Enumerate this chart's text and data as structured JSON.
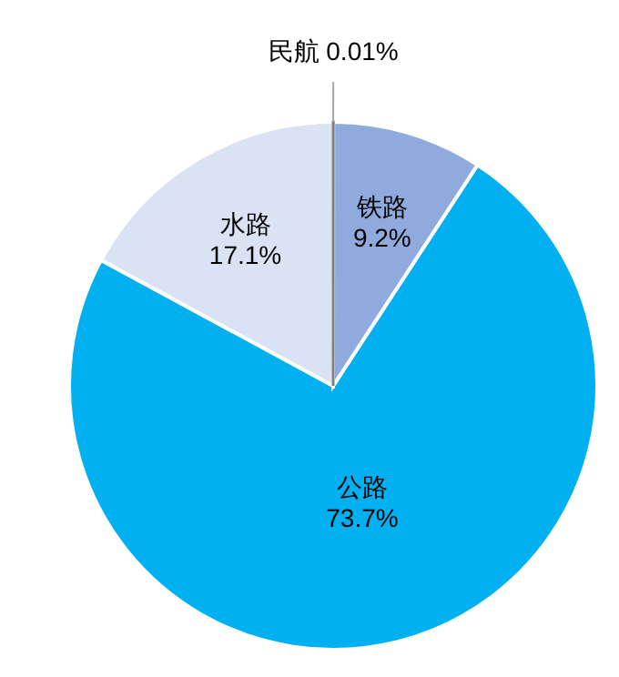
{
  "chart_data": {
    "type": "pie",
    "categories": [
      "民航",
      "铁路",
      "公路",
      "水路"
    ],
    "values": [
      0.01,
      9.2,
      73.7,
      17.1
    ],
    "colors": [
      "#7f7f7f",
      "#8faadc",
      "#00b0f0",
      "#dae3f3"
    ],
    "value_labels": [
      "0.01%",
      "9.2%",
      "73.7%",
      "17.1%"
    ]
  }
}
